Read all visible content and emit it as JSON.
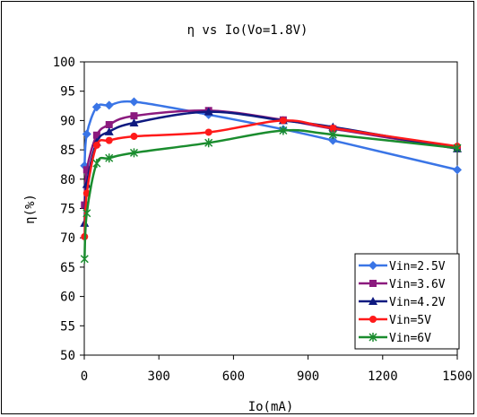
{
  "chart_data": {
    "type": "line",
    "title": "η vs Io(Vo=1.8V)",
    "xlabel": "Io(mA)",
    "ylabel": "η(%)",
    "xlim": [
      0,
      1500
    ],
    "ylim": [
      50,
      100
    ],
    "xticks": [
      0,
      300,
      600,
      900,
      1200,
      1500
    ],
    "yticks": [
      50,
      55,
      60,
      65,
      70,
      75,
      80,
      85,
      90,
      95,
      100
    ],
    "grid": false,
    "legend_position": "bottom-right",
    "series": [
      {
        "name": "Vin=2.5V",
        "color": "#3a75e6",
        "marker": "diamond",
        "x": [
          1,
          10,
          50,
          100,
          200,
          500,
          800,
          1000,
          1500
        ],
        "y": [
          82.3,
          87.7,
          92.3,
          92.6,
          93.2,
          91.0,
          88.5,
          86.6,
          81.6
        ]
      },
      {
        "name": "Vin=3.6V",
        "color": "#8b1a7e",
        "marker": "square",
        "x": [
          1,
          10,
          50,
          100,
          200,
          500,
          800,
          1000,
          1500
        ],
        "y": [
          75.6,
          81.6,
          87.5,
          89.3,
          90.8,
          91.7,
          90.1,
          88.6,
          85.2
        ]
      },
      {
        "name": "Vin=4.2V",
        "color": "#0f1a80",
        "marker": "triangle",
        "x": [
          1,
          10,
          50,
          100,
          200,
          500,
          800,
          1000,
          1500
        ],
        "y": [
          72.5,
          79.1,
          86.3,
          88.1,
          89.6,
          91.5,
          90.0,
          88.9,
          85.2
        ]
      },
      {
        "name": "Vin=5V",
        "color": "#ff1a1a",
        "marker": "circle",
        "x": [
          1,
          10,
          50,
          100,
          200,
          500,
          800,
          1000,
          1500
        ],
        "y": [
          70.2,
          77.6,
          85.8,
          86.6,
          87.3,
          88.0,
          90.0,
          88.7,
          85.6
        ]
      },
      {
        "name": "Vin=6V",
        "color": "#1a8c2e",
        "marker": "star",
        "x": [
          1,
          10,
          50,
          100,
          200,
          500,
          800,
          1000,
          1500
        ],
        "y": [
          66.4,
          74.2,
          82.7,
          83.6,
          84.5,
          86.2,
          88.3,
          87.6,
          85.3
        ]
      }
    ]
  }
}
